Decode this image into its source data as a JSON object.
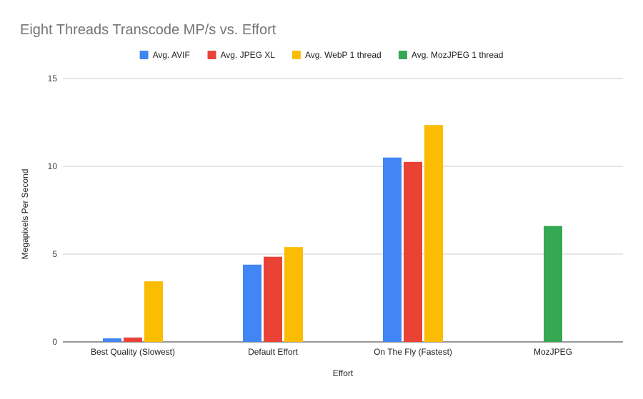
{
  "chart_data": {
    "type": "bar",
    "title": "Eight Threads Transcode MP/s vs. Effort",
    "xlabel": "Effort",
    "ylabel": "Megapixels Per Second",
    "ylim": [
      0,
      15
    ],
    "yticks": [
      "0",
      "5",
      "10",
      "15"
    ],
    "grid": true,
    "legend_position": "top",
    "categories": [
      "Best Quality (Slowest)",
      "Default Effort",
      "On The Fly (Fastest)",
      "MozJPEG"
    ],
    "series": [
      {
        "name": "Avg. AVIF",
        "color": "#4285f4",
        "values": [
          0.2,
          4.4,
          10.5,
          null
        ]
      },
      {
        "name": "Avg. JPEG XL",
        "color": "#ea4335",
        "values": [
          0.25,
          4.85,
          10.25,
          null
        ]
      },
      {
        "name": "Avg. WebP 1 thread",
        "color": "#fbbc04",
        "values": [
          3.45,
          5.4,
          12.35,
          null
        ]
      },
      {
        "name": "Avg. MozJPEG 1 thread",
        "color": "#34a853",
        "values": [
          null,
          null,
          null,
          6.6
        ]
      }
    ]
  }
}
